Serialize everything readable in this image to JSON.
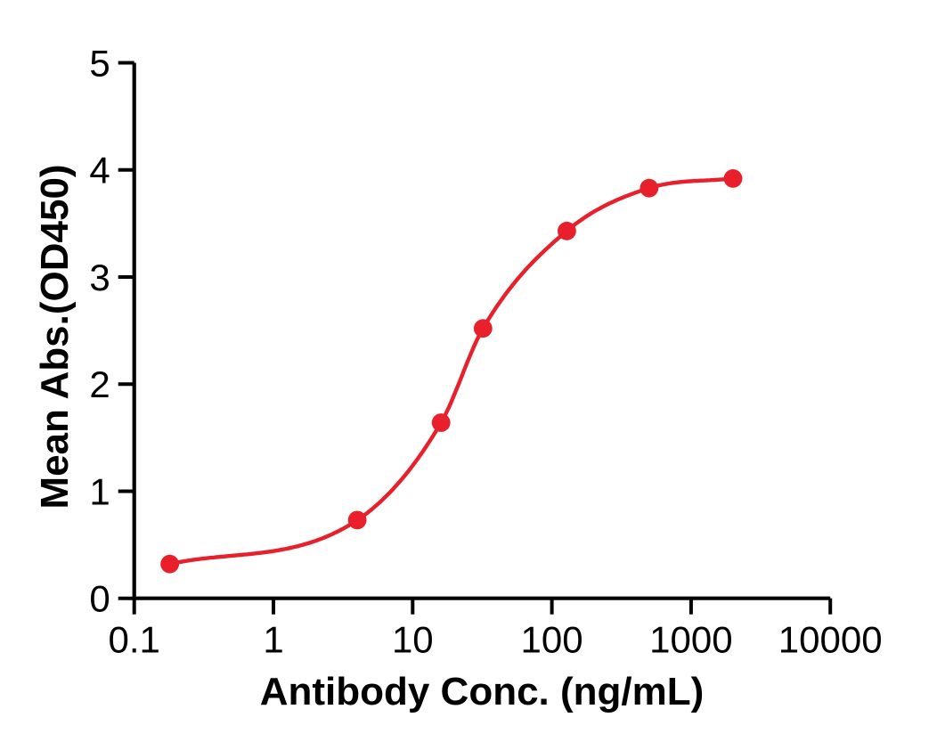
{
  "figure": {
    "background_color": "#FFFFFF",
    "axis_color": "#000000",
    "accent_color": "#E8202C"
  },
  "chart_data": {
    "type": "line",
    "title": "",
    "xlabel": "Antibody Conc. (ng/mL)",
    "ylabel": "Mean Abs.(OD450)",
    "x_scale": "log",
    "xlim": [
      0.1,
      10000
    ],
    "ylim": [
      0,
      5
    ],
    "x_ticks": [
      0.1,
      1,
      10,
      100,
      1000,
      10000
    ],
    "x_tick_labels": [
      "0.1",
      "1",
      "10",
      "100",
      "1000",
      "10000"
    ],
    "y_ticks": [
      0,
      1,
      2,
      3,
      4,
      5
    ],
    "y_tick_labels": [
      "0",
      "1",
      "2",
      "3",
      "4",
      "5"
    ],
    "grid": false,
    "legend": "none",
    "series": [
      {
        "marker": "filled-circle",
        "line_style": "sigmoidal-fit-curve",
        "color": "#E8202C",
        "points": [
          {
            "x": 0.18,
            "y": 0.32
          },
          {
            "x": 4,
            "y": 0.73
          },
          {
            "x": 16,
            "y": 1.64
          },
          {
            "x": 32,
            "y": 2.52
          },
          {
            "x": 128,
            "y": 3.43
          },
          {
            "x": 500,
            "y": 3.83
          },
          {
            "x": 2000,
            "y": 3.92
          }
        ]
      }
    ]
  }
}
